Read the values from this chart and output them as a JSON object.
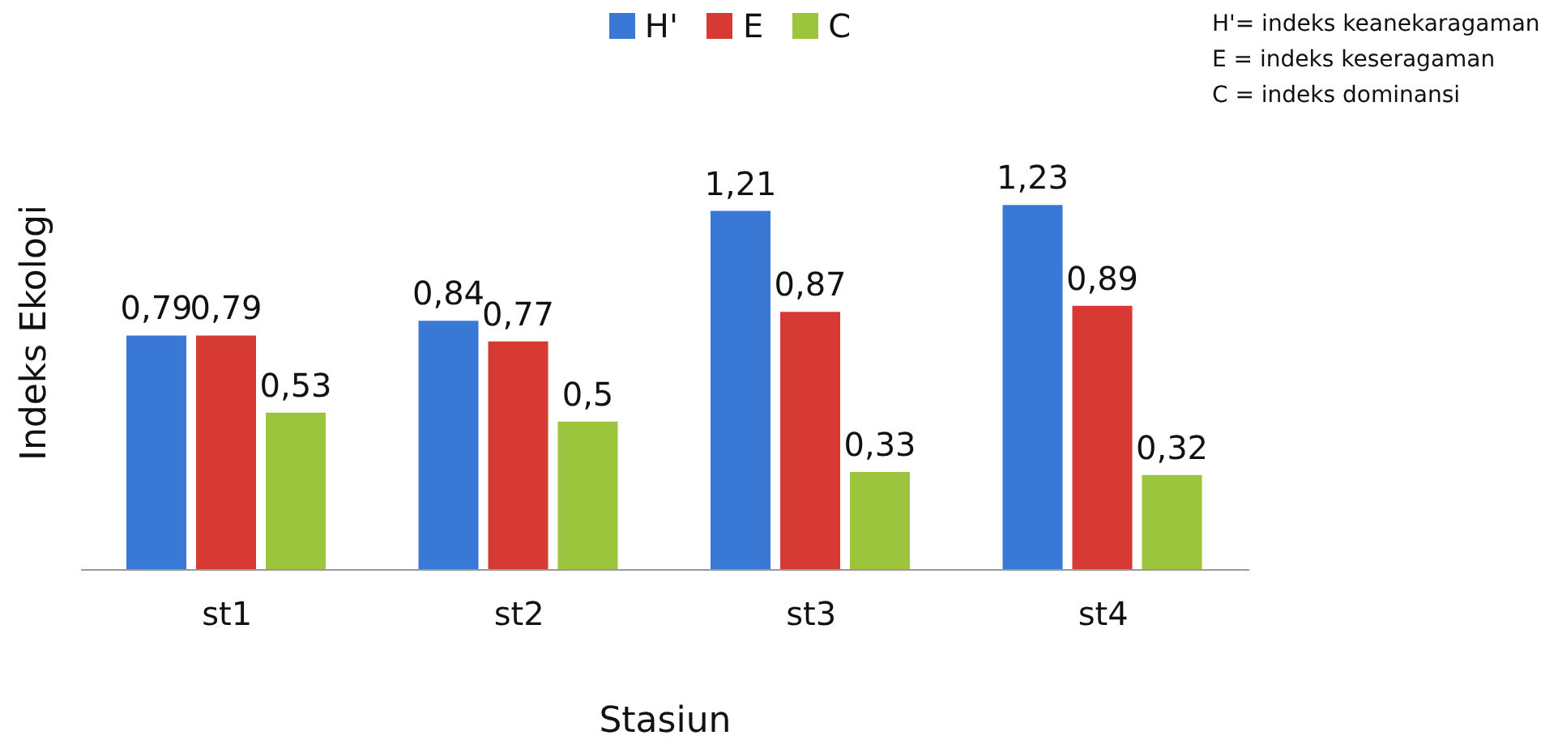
{
  "chart_data": {
    "type": "bar",
    "xlabel": "Stasiun",
    "ylabel": "Indeks Ekologi",
    "categories": [
      "st1",
      "st2",
      "st3",
      "st4"
    ],
    "series": [
      {
        "name": "H'",
        "color": "#3a78d6",
        "values": [
          0.79,
          0.84,
          1.21,
          1.23
        ],
        "value_labels": [
          "0,79",
          "0,84",
          "1,21",
          "1,23"
        ]
      },
      {
        "name": "E",
        "color": "#d63a33",
        "values": [
          0.79,
          0.77,
          0.87,
          0.89
        ],
        "value_labels": [
          "0,79",
          "0,77",
          "0,87",
          "0,89"
        ]
      },
      {
        "name": "C",
        "color": "#9cc43c",
        "values": [
          0.53,
          0.5,
          0.33,
          0.32
        ],
        "value_labels": [
          "0,53",
          "0,5",
          "0,33",
          "0,32"
        ]
      }
    ],
    "legend": "top",
    "grid": false,
    "annotations": [
      "H'= indeks keanekaragaman",
      "E = indeks keseragaman",
      "C = indeks dominansi"
    ]
  }
}
